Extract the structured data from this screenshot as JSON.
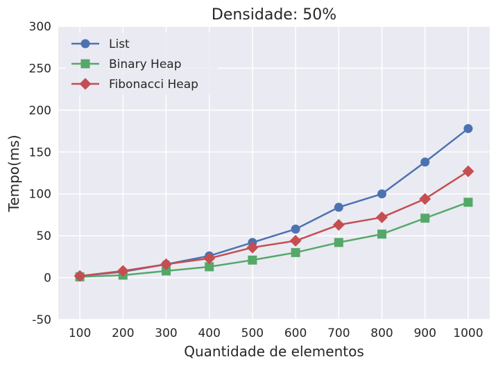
{
  "chart_data": {
    "type": "line",
    "title": "Densidade: 50%",
    "xlabel": "Quantidade de elementos",
    "ylabel": "Tempo(ms)",
    "x": [
      100,
      200,
      300,
      400,
      500,
      600,
      700,
      800,
      900,
      1000
    ],
    "x_tick_labels": [
      "100",
      "200",
      "300",
      "400",
      "500",
      "600",
      "700",
      "800",
      "900",
      "1000"
    ],
    "ylim": [
      -50,
      300
    ],
    "y_ticks": [
      -50,
      0,
      50,
      100,
      150,
      200,
      250,
      300
    ],
    "y_tick_labels": [
      "-50",
      "0",
      "50",
      "100",
      "150",
      "200",
      "250",
      "300"
    ],
    "grid": true,
    "legend_position": "top-left",
    "series": [
      {
        "name": "List",
        "color": "#4c72b0",
        "marker": "circle",
        "values": [
          2,
          7,
          16,
          26,
          42,
          58,
          84,
          100,
          138,
          178
        ]
      },
      {
        "name": "Binary Heap",
        "color": "#55a868",
        "marker": "square",
        "values": [
          1,
          3,
          8,
          13,
          21,
          30,
          42,
          52,
          71,
          90
        ]
      },
      {
        "name": "Fibonacci Heap",
        "color": "#c44e52",
        "marker": "diamond",
        "values": [
          2,
          8,
          16,
          23,
          36,
          44,
          63,
          72,
          94,
          127
        ]
      }
    ]
  }
}
